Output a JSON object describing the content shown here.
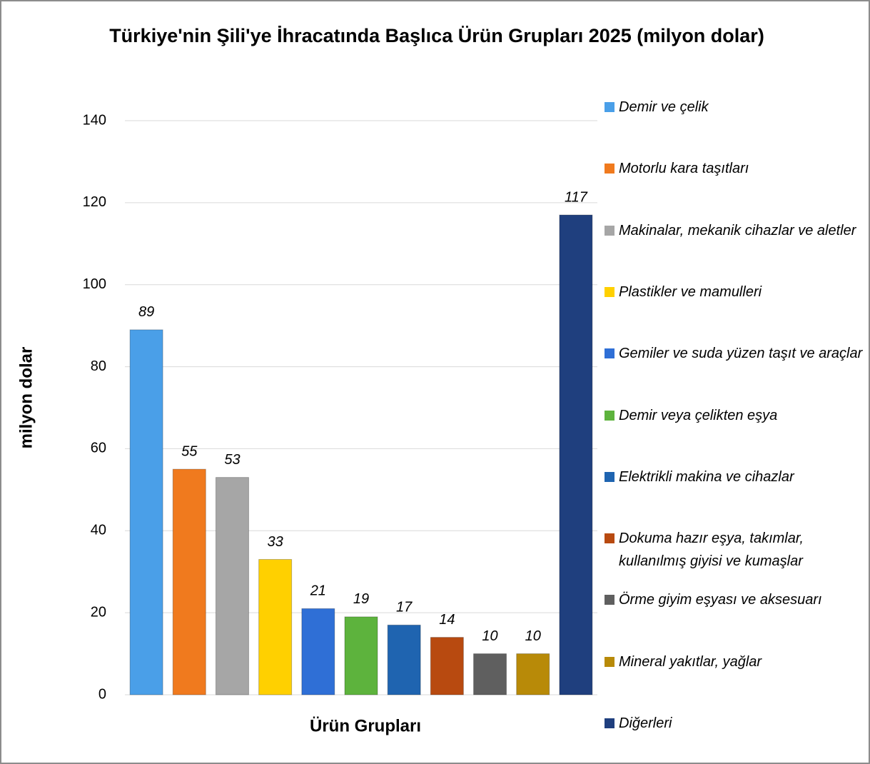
{
  "chart_data": {
    "type": "bar",
    "title": "Türkiye'nin Şili'ye İhracatında Başlıca Ürün Grupları 2025 (milyon dolar)",
    "xlabel": "Ürün Grupları",
    "ylabel": "milyon dolar",
    "ylim": [
      0,
      140
    ],
    "yticks": [
      0,
      20,
      40,
      60,
      80,
      100,
      120,
      140
    ],
    "grid": true,
    "series": [
      {
        "name": "Demir ve çelik",
        "color": "#4a9fe8",
        "values": [
          89
        ]
      },
      {
        "name": "Motorlu kara taşıtları",
        "color": "#f07a1e",
        "values": [
          55
        ]
      },
      {
        "name": "Makinalar, mekanik cihazlar ve aletler",
        "color": "#a6a6a6",
        "values": [
          53
        ]
      },
      {
        "name": "Plastikler ve mamulleri",
        "color": "#ffd000",
        "values": [
          33
        ]
      },
      {
        "name": "Gemiler ve suda yüzen taşıt ve araçlar",
        "color": "#2f6fd6",
        "values": [
          21
        ]
      },
      {
        "name": "Demir veya çelikten eşya",
        "color": "#5db33d",
        "values": [
          19
        ]
      },
      {
        "name": "Elektrikli makina ve cihazlar",
        "color": "#1f64b0",
        "values": [
          17
        ]
      },
      {
        "name": "Dokuma hazır eşya, takımlar, kullanılmış giyisi ve kumaşlar",
        "color": "#b84a10",
        "values": [
          14
        ]
      },
      {
        "name": "Örme giyim eşyası ve aksesuarı",
        "color": "#5f5f5f",
        "values": [
          10
        ]
      },
      {
        "name": "Mineral yakıtlar, yağlar",
        "color": "#b88a08",
        "values": [
          10
        ]
      },
      {
        "name": "Diğerleri",
        "color": "#1f3f7e",
        "values": [
          117
        ]
      }
    ]
  }
}
